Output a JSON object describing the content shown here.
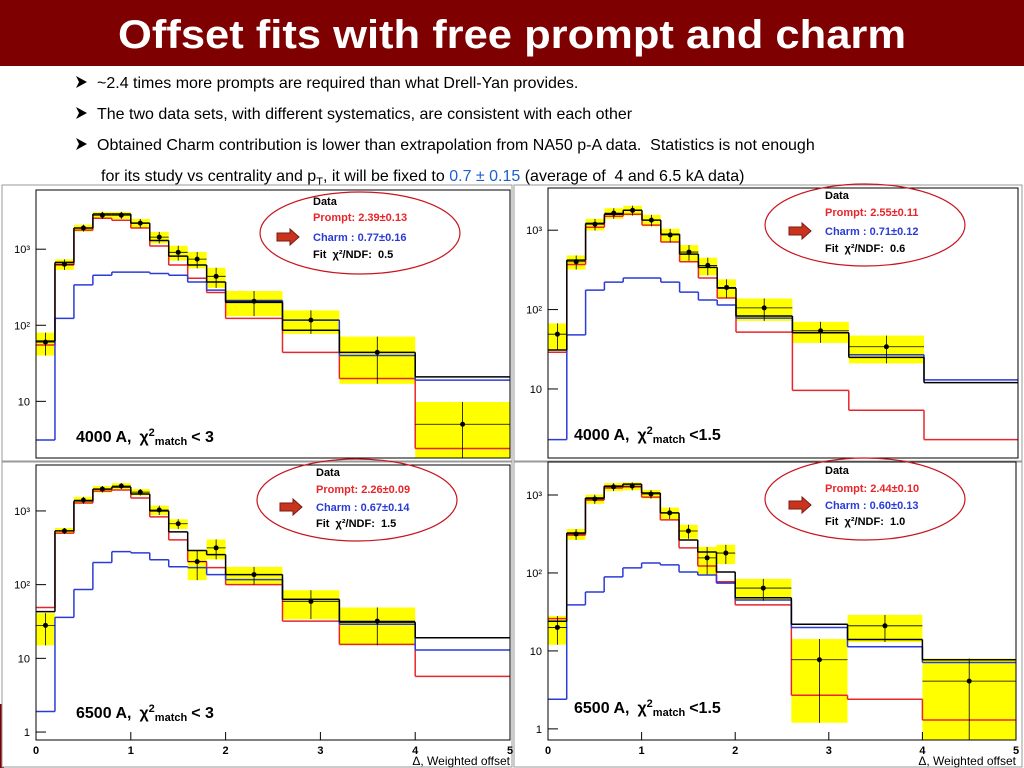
{
  "title": "Offset fits with free prompt and charm",
  "bullets": [
    "~2.4 times more prompts are required than what Drell-Yan provides.",
    "The two data sets, with different systematics, are consistent with each other",
    "Obtained Charm contribution is lower than extrapolation from NA50 p-A data.  Statistics is not enough"
  ],
  "bullet_continuation": {
    "before": "for its study vs centrality and p",
    "subscript": "T",
    "middle": ", it will be fixed to ",
    "highlight": "0.7 ± 0.15",
    "after": " (average of  4 and 6.5 kA data)"
  },
  "chart_data": [
    {
      "type": "histogram",
      "log_y": true,
      "xlim": [
        0,
        5
      ],
      "ylim": [
        1.8,
        6000
      ],
      "yticks": [
        10,
        {
          "value": 100,
          "label": "10²"
        },
        {
          "value": 1000,
          "label": "10³"
        }
      ],
      "bins": [
        0,
        0.2,
        0.4,
        0.6,
        0.8,
        1,
        1.2,
        1.4,
        1.6,
        1.8,
        2,
        2.6,
        3.2,
        4,
        5
      ],
      "data": {
        "name": "Data",
        "color": "#000000",
        "error_color": "#ffff00",
        "values": [
          60,
          635,
          1900,
          2800,
          2800,
          2200,
          1440,
          910,
          740,
          440,
          207,
          117,
          44,
          5
        ],
        "errors": [
          20,
          100,
          200,
          300,
          300,
          300,
          250,
          200,
          180,
          130,
          75,
          40,
          27,
          4.8
        ]
      },
      "series": [
        {
          "name": "Prompt: 2.39±0.13",
          "color": "#e8262a",
          "values": [
            55,
            620,
            1780,
            2550,
            2400,
            1900,
            1100,
            620,
            415,
            270,
            123,
            44,
            20,
            2.4
          ]
        },
        {
          "name": "Charm : 0.77±0.16",
          "color": "#2a3bd6",
          "values": [
            3.1,
            123,
            340,
            455,
            500,
            500,
            480,
            455,
            370,
            290,
            212,
            117,
            40,
            19
          ]
        },
        {
          "color": "#000000",
          "values": [
            62,
            670,
            1900,
            2900,
            2900,
            2200,
            1300,
            810,
            620,
            370,
            200,
            86,
            44,
            21
          ]
        }
      ],
      "fit": "Fit  χ²/NDF:  0.5",
      "annotation": {
        "current": "4000 A,",
        "chi": "χ",
        "sup": "2",
        "sub": "match",
        "cut": "< 3"
      }
    },
    {
      "type": "histogram",
      "log_y": true,
      "xlim": [
        0,
        5
      ],
      "ylim": [
        1.35,
        3400
      ],
      "yticks": [
        10,
        {
          "value": 100,
          "label": "10²"
        },
        {
          "value": 1000,
          "label": "10³"
        }
      ],
      "bins": [
        0,
        0.2,
        0.4,
        0.6,
        0.8,
        1,
        1.2,
        1.4,
        1.6,
        1.8,
        2,
        2.6,
        3.2,
        4,
        5
      ],
      "data": {
        "name": "Data",
        "color": "#000000",
        "error_color": "#ffff00",
        "values": [
          49,
          400,
          1190,
          1640,
          1780,
          1340,
          870,
          530,
          360,
          190,
          105,
          54,
          34,
          null
        ],
        "errors": [
          18,
          80,
          200,
          250,
          250,
          220,
          170,
          120,
          90,
          50,
          33,
          16,
          13,
          null
        ]
      },
      "series": [
        {
          "name": "Prompt: 2.55±0.11",
          "color": "#e8262a",
          "values": [
            29,
            370,
            1090,
            1500,
            1590,
            1160,
            710,
            400,
            250,
            140,
            52,
            9.6,
            5.4,
            2.3
          ]
        },
        {
          "name": "Charm : 0.71±0.12",
          "color": "#2a3bd6",
          "values": [
            2.3,
            48,
            176,
            222,
            250,
            250,
            222,
            166,
            132,
            114,
            78,
            51,
            27,
            13
          ]
        },
        {
          "color": "#000000",
          "values": [
            31,
            420,
            1220,
            1590,
            1780,
            1340,
            890,
            500,
            340,
            186,
            83,
            51,
            25,
            12
          ]
        }
      ],
      "fit": "Fit  χ²/NDF:  0.6",
      "annotation": {
        "current": "4000 A,",
        "chi": "χ",
        "sup": "2",
        "sub": "match",
        "cut": "<1.5"
      }
    },
    {
      "type": "histogram",
      "log_y": true,
      "xlim": [
        0,
        5
      ],
      "ylim": [
        0.78,
        4200
      ],
      "yticks": [
        1,
        10,
        {
          "value": 100,
          "label": "10²"
        },
        {
          "value": 1000,
          "label": "10³"
        }
      ],
      "xticks": [
        0,
        1,
        2,
        3,
        4,
        5
      ],
      "xlabel": "Δ, Weighted offset",
      "bins": [
        0,
        0.2,
        0.4,
        0.6,
        0.8,
        1,
        1.2,
        1.4,
        1.6,
        1.8,
        2,
        2.6,
        3.2,
        4,
        5
      ],
      "data": {
        "name": "Data",
        "color": "#000000",
        "error_color": "#ffff00",
        "values": [
          28,
          537,
          1400,
          1980,
          2180,
          1800,
          1030,
          670,
          205,
          315,
          137,
          59,
          32,
          null
        ],
        "errors": [
          13,
          50,
          150,
          200,
          200,
          180,
          150,
          100,
          90,
          95,
          37,
          25,
          17,
          null
        ]
      },
      "series": [
        {
          "name": "Prompt: 2.26±0.09",
          "color": "#e8262a",
          "values": [
            49,
            500,
            1280,
            1860,
            1920,
            1500,
            830,
            405,
            205,
            170,
            100,
            32,
            15.5,
            5.7
          ]
        },
        {
          "name": "Charm : 0.67±0.14",
          "color": "#2a3bd6",
          "values": [
            1.9,
            36,
            86,
            200,
            280,
            270,
            218,
            175,
            170,
            137,
            117,
            63,
            29,
            13
          ]
        },
        {
          "color": "#000000",
          "values": [
            43,
            537,
            1370,
            1980,
            2110,
            1700,
            1000,
            520,
            290,
            255,
            137,
            63,
            31,
            19
          ]
        }
      ],
      "fit": "Fit  χ²/NDF:  1.5",
      "annotation": {
        "current": "6500 A,",
        "chi": "χ",
        "sup": "2",
        "sub": "match",
        "cut": "< 3"
      }
    },
    {
      "type": "histogram",
      "log_y": true,
      "xlim": [
        0,
        5
      ],
      "ylim": [
        0.72,
        2650
      ],
      "yticks": [
        1,
        10,
        {
          "value": 100,
          "label": "10²"
        },
        {
          "value": 1000,
          "label": "10³"
        }
      ],
      "xticks": [
        0,
        1,
        2,
        3,
        4,
        5
      ],
      "xlabel": "Δ, Weighted offset",
      "bins": [
        0,
        0.2,
        0.4,
        0.6,
        0.8,
        1,
        1.2,
        1.4,
        1.6,
        1.8,
        2,
        2.6,
        3.2,
        4,
        5
      ],
      "data": {
        "name": "Data",
        "color": "#000000",
        "error_color": "#ffff00",
        "values": [
          20,
          316,
          890,
          1270,
          1300,
          1030,
          590,
          345,
          156,
          180,
          64,
          7.7,
          21,
          4.1
        ],
        "errors": [
          8,
          50,
          120,
          150,
          150,
          130,
          100,
          70,
          60,
          50,
          20,
          6.5,
          8,
          3.9
        ]
      },
      "series": [
        {
          "name": "Prompt: 2.44±0.10",
          "color": "#e8262a",
          "values": [
            26,
            306,
            860,
            1230,
            1270,
            940,
            480,
            210,
            123,
            77,
            39,
            2.7,
            2.4,
            1.3
          ]
        },
        {
          "name": "Charm : 0.60±0.13",
          "color": "#2a3bd6",
          "values": [
            2.4,
            39,
            57,
            89,
            116,
            134,
            127,
            103,
            94,
            74,
            45,
            20,
            11.3,
            7.1
          ]
        },
        {
          "color": "#000000",
          "values": [
            24,
            325,
            915,
            1300,
            1380,
            1060,
            590,
            265,
            186,
            103,
            48,
            22,
            14,
            7.7
          ]
        }
      ],
      "fit": "Fit  χ²/NDF:  1.0",
      "annotation": {
        "current": "6500 A,",
        "chi": "χ",
        "sup": "2",
        "sub": "match",
        "cut": "<1.5"
      }
    }
  ]
}
